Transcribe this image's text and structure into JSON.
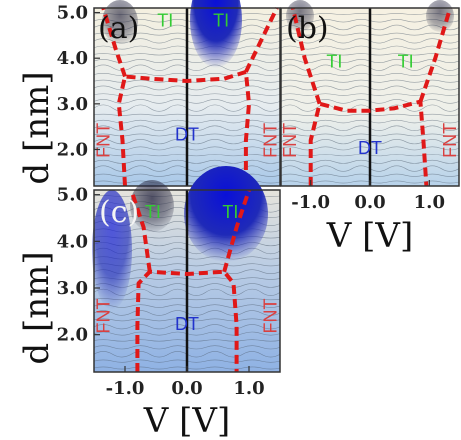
{
  "chart_data": [
    {
      "type": "heatmap",
      "panel_label": "(a)",
      "xlim": [
        -1.5,
        1.5
      ],
      "ylim": [
        1.2,
        5.1
      ],
      "yticks": [
        "2.0",
        "3.0",
        "4.0",
        "5.0"
      ],
      "ylabel": "d [nm]",
      "background": "#f3efe0",
      "regions": [
        {
          "label": "TI",
          "color": "#33cc33",
          "x": -0.35,
          "y": 4.7
        },
        {
          "label": "TI",
          "color": "#33cc33",
          "x": 0.55,
          "y": 4.7
        },
        {
          "label": "FNT",
          "color": "#d94040",
          "x": -1.35,
          "y": 2.2,
          "rotate": -90
        },
        {
          "label": "DT",
          "color": "#2233cc",
          "x": 0.0,
          "y": 2.2
        },
        {
          "label": "FNT",
          "color": "#d94040",
          "x": 1.35,
          "y": 2.2,
          "rotate": -90
        }
      ],
      "boundary_left": [
        [
          -1.0,
          1.2
        ],
        [
          -1.04,
          2.2
        ],
        [
          -1.1,
          3.0
        ],
        [
          -1.0,
          3.6
        ],
        [
          -0.6,
          3.55
        ],
        [
          0.0,
          3.5
        ]
      ],
      "boundary_right": [
        [
          0.0,
          3.5
        ],
        [
          0.6,
          3.55
        ],
        [
          0.95,
          3.7
        ],
        [
          1.0,
          3.0
        ],
        [
          0.95,
          2.2
        ],
        [
          0.95,
          1.2
        ]
      ],
      "boundary_arcs": [
        [
          [
            -1.0,
            3.6
          ],
          [
            -1.15,
            4.2
          ],
          [
            -1.35,
            5.1
          ]
        ],
        [
          [
            0.95,
            3.7
          ],
          [
            1.2,
            4.4
          ],
          [
            1.45,
            5.1
          ]
        ]
      ]
    },
    {
      "type": "heatmap",
      "panel_label": "(b)",
      "xlim": [
        -1.5,
        1.5
      ],
      "ylim": [
        1.2,
        5.1
      ],
      "xticks": [
        "-1.0",
        "0.0",
        "1.0"
      ],
      "xlabel": "V [V]",
      "background": "#f5f0e2",
      "regions": [
        {
          "label": "TI",
          "color": "#33cc33",
          "x": -0.6,
          "y": 3.8
        },
        {
          "label": "TI",
          "color": "#33cc33",
          "x": 0.6,
          "y": 3.8
        },
        {
          "label": "FNT",
          "color": "#d94040",
          "x": -1.35,
          "y": 2.2,
          "rotate": -90
        },
        {
          "label": "DT",
          "color": "#2233cc",
          "x": 0.0,
          "y": 1.9
        },
        {
          "label": "FNT",
          "color": "#d94040",
          "x": 1.35,
          "y": 2.2,
          "rotate": -90
        }
      ],
      "boundary_left": [
        [
          -1.0,
          1.2
        ],
        [
          -1.0,
          2.2
        ],
        [
          -0.85,
          3.0
        ],
        [
          -0.4,
          2.85
        ],
        [
          0.0,
          2.85
        ]
      ],
      "boundary_right": [
        [
          0.0,
          2.85
        ],
        [
          0.4,
          2.9
        ],
        [
          0.85,
          3.05
        ],
        [
          0.9,
          2.2
        ],
        [
          0.95,
          1.2
        ]
      ],
      "boundary_arcs": [
        [
          [
            -0.85,
            3.0
          ],
          [
            -1.1,
            4.0
          ],
          [
            -1.3,
            5.1
          ]
        ],
        [
          [
            0.85,
            3.05
          ],
          [
            1.1,
            4.0
          ],
          [
            1.35,
            5.1
          ]
        ]
      ]
    },
    {
      "type": "heatmap",
      "panel_label": "(c)",
      "xlim": [
        -1.5,
        1.5
      ],
      "ylim": [
        1.2,
        5.1
      ],
      "xticks": [
        "-1.0",
        "0.0",
        "1.0"
      ],
      "yticks": [
        "2.0",
        "3.0",
        "4.0",
        "5.0"
      ],
      "xlabel": "V [V]",
      "ylabel": "d [nm]",
      "background": "#9cb8e0",
      "regions": [
        {
          "label": "TI",
          "color": "#33cc33",
          "x": -0.55,
          "y": 4.5
        },
        {
          "label": "TI",
          "color": "#33cc33",
          "x": 0.7,
          "y": 4.5
        },
        {
          "label": "FNT",
          "color": "#d94040",
          "x": -1.35,
          "y": 2.4,
          "rotate": -90
        },
        {
          "label": "DT",
          "color": "#2233cc",
          "x": 0.0,
          "y": 2.1
        },
        {
          "label": "FNT",
          "color": "#d94040",
          "x": 1.35,
          "y": 2.4,
          "rotate": -90
        }
      ],
      "boundary_left": [
        [
          -0.8,
          1.2
        ],
        [
          -0.8,
          2.2
        ],
        [
          -0.78,
          3.1
        ],
        [
          -0.6,
          3.35
        ],
        [
          0.0,
          3.3
        ]
      ],
      "boundary_right": [
        [
          0.0,
          3.3
        ],
        [
          0.6,
          3.35
        ],
        [
          0.75,
          3.1
        ],
        [
          0.8,
          2.2
        ],
        [
          0.8,
          1.2
        ]
      ],
      "boundary_arcs": [
        [
          [
            -0.6,
            3.35
          ],
          [
            -0.7,
            4.3
          ],
          [
            -0.9,
            5.1
          ]
        ],
        [
          [
            0.6,
            3.35
          ],
          [
            0.8,
            4.3
          ],
          [
            1.0,
            5.1
          ]
        ]
      ]
    }
  ]
}
